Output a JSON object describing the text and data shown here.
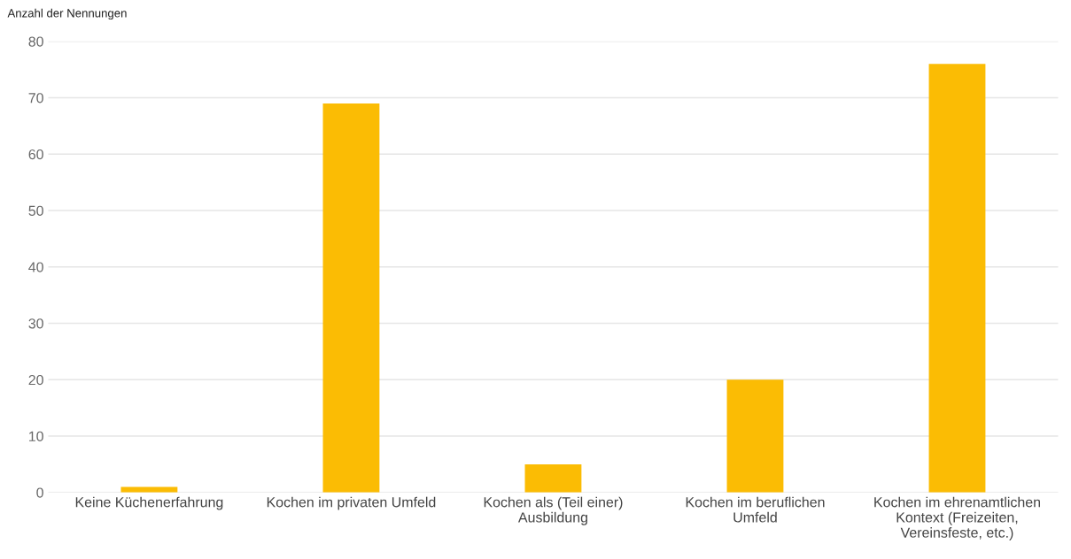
{
  "chart_data": {
    "type": "bar",
    "ylabel": "Anzahl der Nennungen",
    "categories": [
      "Keine Küchenerfahrung",
      "Kochen im privaten Umfeld",
      "Kochen als (Teil einer) Ausbildung",
      "Kochen im beruflichen Umfeld",
      "Kochen im ehrenamtlichen Kontext (Freizeiten, Vereinsfeste, etc.)"
    ],
    "values": [
      1,
      69,
      5,
      20,
      76
    ],
    "color": "#fbbc04",
    "ylim": [
      0,
      80
    ],
    "yticks": [
      0,
      10,
      20,
      30,
      40,
      50,
      60,
      70,
      80
    ],
    "grid": "y",
    "legend": false
  }
}
